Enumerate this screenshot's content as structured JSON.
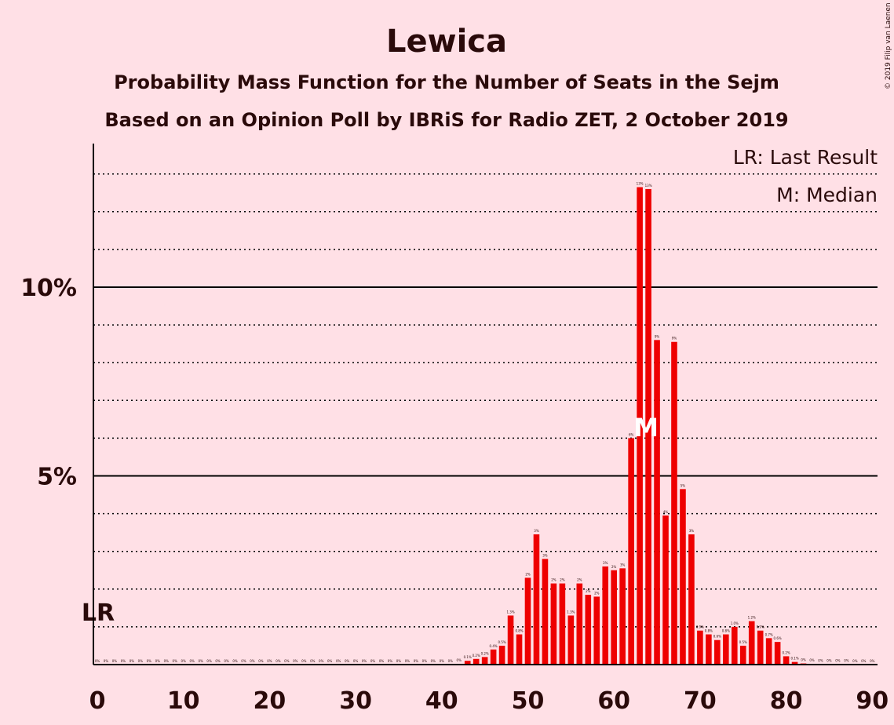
{
  "chart_data": {
    "type": "bar",
    "title": "Lewica",
    "subtitle1": "Probability Mass Function for the Number of Seats in the Sejm",
    "subtitle2": "Based on an Opinion Poll by IBRiS for Radio ZET, 2 October 2019",
    "copyright": "© 2019 Filip van Laenen",
    "legend": [
      "LR: Last Result",
      "M: Median"
    ],
    "xlabel": "",
    "ylabel": "",
    "xlim": [
      0,
      90
    ],
    "ylim": [
      0,
      13.8
    ],
    "x_ticks": [
      0,
      10,
      20,
      30,
      40,
      50,
      60,
      70,
      80,
      90
    ],
    "y_ticks": [
      {
        "value": 5,
        "label": "5%"
      },
      {
        "value": 10,
        "label": "10%"
      }
    ],
    "last_result": {
      "seats": 0,
      "label": "LR"
    },
    "median": {
      "seats": 64,
      "label": "M"
    },
    "seats": [
      0,
      1,
      2,
      3,
      4,
      5,
      6,
      7,
      8,
      9,
      10,
      11,
      12,
      13,
      14,
      15,
      16,
      17,
      18,
      19,
      20,
      21,
      22,
      23,
      24,
      25,
      26,
      27,
      28,
      29,
      30,
      31,
      32,
      33,
      34,
      35,
      36,
      37,
      38,
      39,
      40,
      41,
      42,
      43,
      44,
      45,
      46,
      47,
      48,
      49,
      50,
      51,
      52,
      53,
      54,
      55,
      56,
      57,
      58,
      59,
      60,
      61,
      62,
      63,
      64,
      65,
      66,
      67,
      68,
      69,
      70,
      71,
      72,
      73,
      74,
      75,
      76,
      77,
      78,
      79,
      80,
      81,
      82,
      83,
      84,
      85,
      86,
      87,
      88,
      89,
      90
    ],
    "values": [
      0,
      0,
      0,
      0,
      0,
      0,
      0,
      0,
      0,
      0,
      0,
      0,
      0,
      0,
      0,
      0,
      0,
      0,
      0,
      0,
      0,
      0,
      0,
      0,
      0,
      0,
      0,
      0,
      0,
      0,
      0,
      0,
      0,
      0,
      0,
      0,
      0,
      0,
      0,
      0,
      0,
      0,
      0.02,
      0.1,
      0.15,
      0.2,
      0.4,
      0.5,
      1.3,
      0.8,
      2.3,
      3.45,
      2.8,
      2.15,
      2.15,
      1.3,
      2.15,
      1.85,
      1.8,
      2.6,
      2.5,
      2.55,
      6.0,
      12.65,
      12.6,
      8.6,
      3.95,
      8.55,
      4.65,
      3.45,
      0.9,
      0.8,
      0.65,
      0.8,
      1.0,
      0.5,
      1.15,
      0.9,
      0.7,
      0.6,
      0.22,
      0.07,
      0.03,
      0.02,
      0.01,
      0.01,
      0.01,
      0.01,
      0,
      0,
      0
    ],
    "bar_labels": [
      "0%",
      "0%",
      "0%",
      "0%",
      "0%",
      "0%",
      "0%",
      "0%",
      "0%",
      "0%",
      "0%",
      "0%",
      "0%",
      "0%",
      "0%",
      "0%",
      "0%",
      "0%",
      "0%",
      "0%",
      "0%",
      "0%",
      "0%",
      "0%",
      "0%",
      "0%",
      "0%",
      "0%",
      "0%",
      "0%",
      "0%",
      "0%",
      "0%",
      "0%",
      "0%",
      "0%",
      "0%",
      "0%",
      "0%",
      "0%",
      "0%",
      "0%",
      "0%",
      "0.1%",
      "0.2%",
      "0.2%",
      "0.4%",
      "0.5%",
      "1.3%",
      "0.8%",
      "2%",
      "3%",
      "3%",
      "2%",
      "2%",
      "1.3%",
      "2%",
      "2%",
      "2%",
      "3%",
      "2%",
      "3%",
      "6%",
      "13%",
      "13%",
      "9%",
      "4%",
      "9%",
      "5%",
      "3%",
      "0.9%",
      "0.8%",
      "0.6%",
      "0.8%",
      "1.0%",
      "0.5%",
      "1.2%",
      "0.9%",
      "0.7%",
      "0.6%",
      "0.2%",
      "0.1%",
      "0%",
      "0%",
      "0%",
      "0%",
      "0%",
      "0%",
      "0%",
      "0%",
      "0%"
    ]
  },
  "colors": {
    "background": "#ffe0e6",
    "bar": "#ee0000",
    "text": "#2a0a0a"
  }
}
